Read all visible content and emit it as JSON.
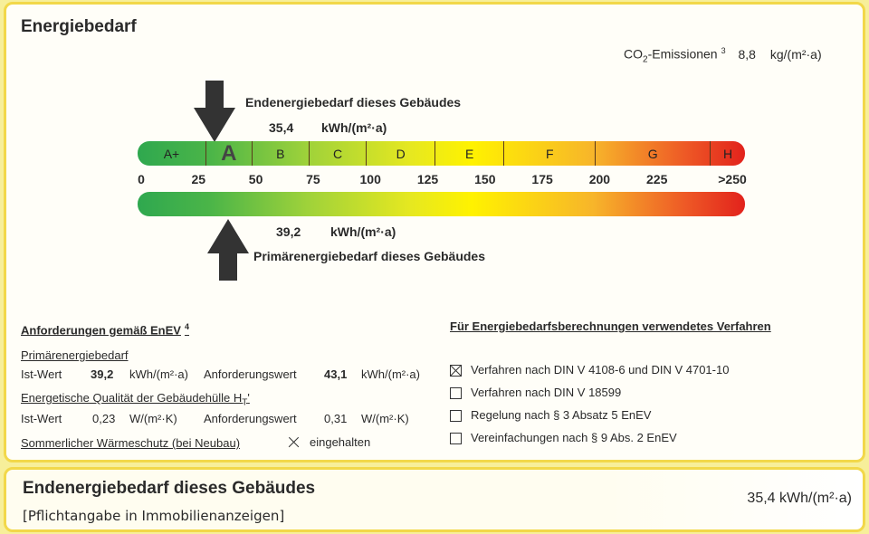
{
  "header": {
    "title": "Energiebedarf"
  },
  "co2": {
    "label_prefix": "CO",
    "label_sub": "2",
    "label_suffix": "-Emissionen",
    "footnote": "3",
    "value": "8,8",
    "unit": "kg/(m²·a)"
  },
  "endenergie": {
    "label": "Endenergiebedarf dieses Gebäudes",
    "value": "35,4",
    "unit": "kWh/(m²·a)",
    "marker_value": 35.4
  },
  "primaerenergie": {
    "label": "Primärenergiebedarf dieses Gebäudes",
    "value": "39,2",
    "unit": "kWh/(m²·a)",
    "marker_value": 39.2
  },
  "scale": {
    "classes": [
      {
        "label": "A+",
        "from": 0,
        "to": 30
      },
      {
        "label": "A",
        "from": 30,
        "to": 50
      },
      {
        "label": "B",
        "from": 50,
        "to": 75
      },
      {
        "label": "C",
        "from": 75,
        "to": 100
      },
      {
        "label": "D",
        "from": 100,
        "to": 130
      },
      {
        "label": "E",
        "from": 130,
        "to": 160
      },
      {
        "label": "F",
        "from": 160,
        "to": 200
      },
      {
        "label": "G",
        "from": 200,
        "to": 250
      },
      {
        "label": "H",
        "from": 250,
        "to": 265
      }
    ],
    "ticks": [
      "0",
      "25",
      "50",
      "75",
      "100",
      "125",
      "150",
      "175",
      "200",
      "225",
      ">250"
    ],
    "max": 265
  },
  "anforderungen": {
    "title": "Anforderungen gemäß EnEV",
    "footnote": "4",
    "primaer_title": "Primärenergiebedarf",
    "ist_label": "Ist-Wert",
    "ist_value": "39,2",
    "ist_unit": "kWh/(m²·a)",
    "anf_label": "Anforderungswert",
    "anf_value": "43,1",
    "anf_unit": "kWh/(m²·a)",
    "huelle_title": "Energetische Qualität der Gebäudehülle H",
    "huelle_sub": "T",
    "huelle_suffix": "'",
    "h_ist_label": "Ist-Wert",
    "h_ist_value": "0,23",
    "h_ist_unit": "W/(m²·K)",
    "h_anf_label": "Anforderungswert",
    "h_anf_value": "0,31",
    "h_anf_unit": "W/(m²·K)",
    "sommer_title": "Sommerlicher Wärmeschutz (bei Neubau)",
    "sommer_check": "eingehalten"
  },
  "verfahren": {
    "title": "Für Energiebedarfsberechnungen verwendetes Verfahren",
    "options": [
      {
        "label": "Verfahren nach DIN V 4108-6 und DIN V 4701-10",
        "checked": true
      },
      {
        "label": "Verfahren nach DIN V 18599",
        "checked": false
      },
      {
        "label": "Regelung nach § 3 Absatz 5 EnEV",
        "checked": false
      },
      {
        "label": "Vereinfachungen nach § 9 Abs. 2 EnEV",
        "checked": false
      }
    ]
  },
  "footer": {
    "title": "Endenergiebedarf dieses Gebäudes",
    "subtitle": "[Pflichtangabe in Immobilienanzeigen]",
    "value": "35,4 kWh/(m²·a)"
  }
}
